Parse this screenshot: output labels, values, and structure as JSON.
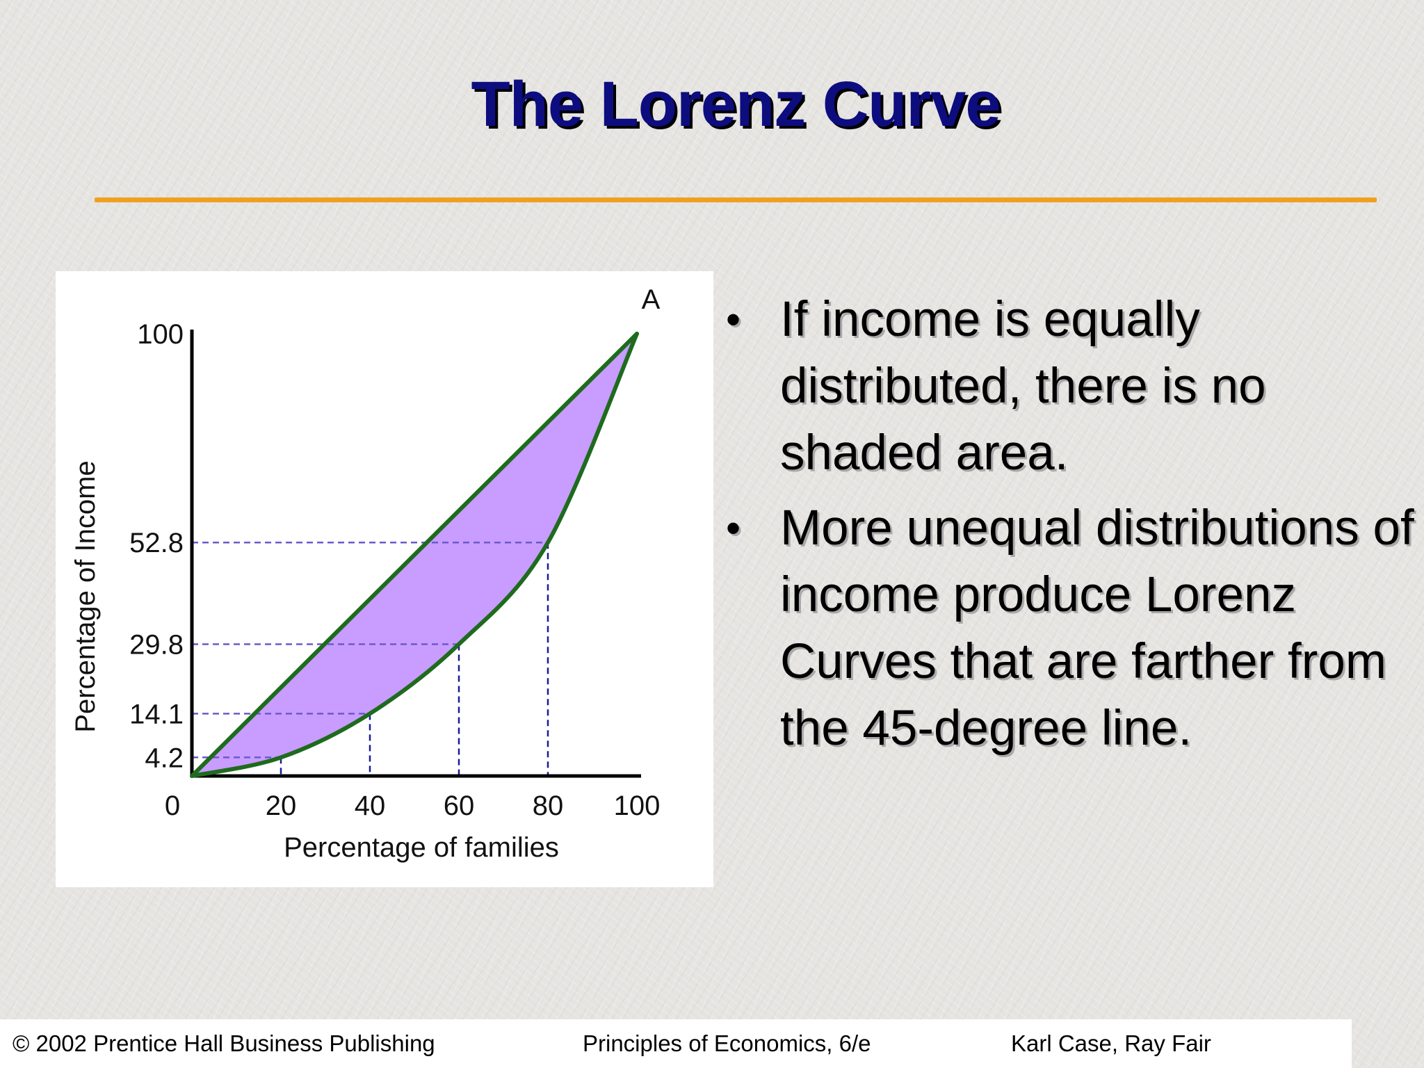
{
  "slide": {
    "title": "The Lorenz Curve",
    "bullets": [
      "If income is equally distributed, there is no shaded area.",
      "More unequal distributions of income produce Lorenz Curves that are farther from the 45-degree line."
    ],
    "bullet_symbol": "•"
  },
  "footer": {
    "left": "© 2002 Prentice Hall Business Publishing",
    "center": "Principles of Economics, 6/e",
    "right": "Karl Case, Ray Fair"
  },
  "colors": {
    "title": "#0d0d80",
    "rule": "#f0a020",
    "curve": "#1e6b1e",
    "shade": "#c99cff",
    "guide": "#6a5acd"
  },
  "chart_data": {
    "type": "line",
    "xlabel": "Percentage of families",
    "ylabel": "Percentage of Income",
    "xlim": [
      0,
      100
    ],
    "ylim": [
      0,
      100
    ],
    "x_ticks": [
      "0",
      "20",
      "40",
      "60",
      "80",
      "100"
    ],
    "y_ticks": [
      "100",
      "52.8",
      "29.8",
      "14.1",
      "4.2"
    ],
    "point_label": "A",
    "series": [
      {
        "x": [
          0,
          100
        ],
        "y": [
          0,
          100
        ]
      },
      {
        "x": [
          0,
          20,
          40,
          60,
          80,
          100
        ],
        "y": [
          0,
          4.2,
          14.1,
          29.8,
          52.8,
          100
        ]
      }
    ],
    "guides": [
      {
        "x": 20,
        "y": 4.2
      },
      {
        "x": 40,
        "y": 14.1
      },
      {
        "x": 60,
        "y": 29.8
      },
      {
        "x": 80,
        "y": 52.8
      }
    ],
    "shaded_between_series": true,
    "grid": false
  }
}
